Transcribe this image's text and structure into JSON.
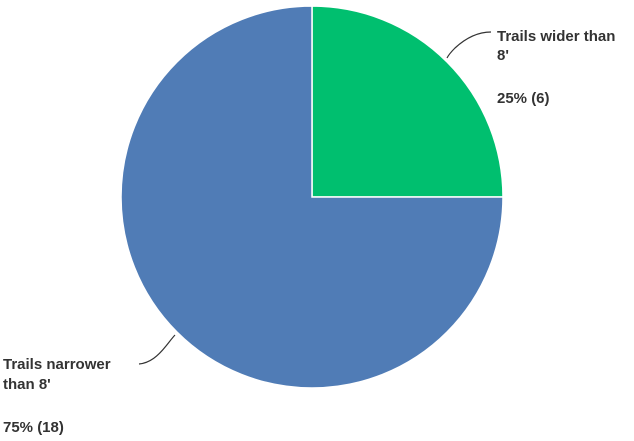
{
  "chart_data": {
    "type": "pie",
    "start_angle_deg": 0,
    "direction": "clockwise",
    "slices": [
      {
        "label_lines": [
          "Trails wider than",
          "8'"
        ],
        "value": 6,
        "percent_label": "25% (6)",
        "color": "#00BF6F"
      },
      {
        "label_lines": [
          "Trails narrower",
          "than 8'"
        ],
        "value": 18,
        "percent_label": "75% (18)",
        "color": "#507CB6"
      }
    ],
    "slice_border_color": "#ffffff",
    "leader_line_color": "#333333",
    "label_color": "#333333"
  }
}
